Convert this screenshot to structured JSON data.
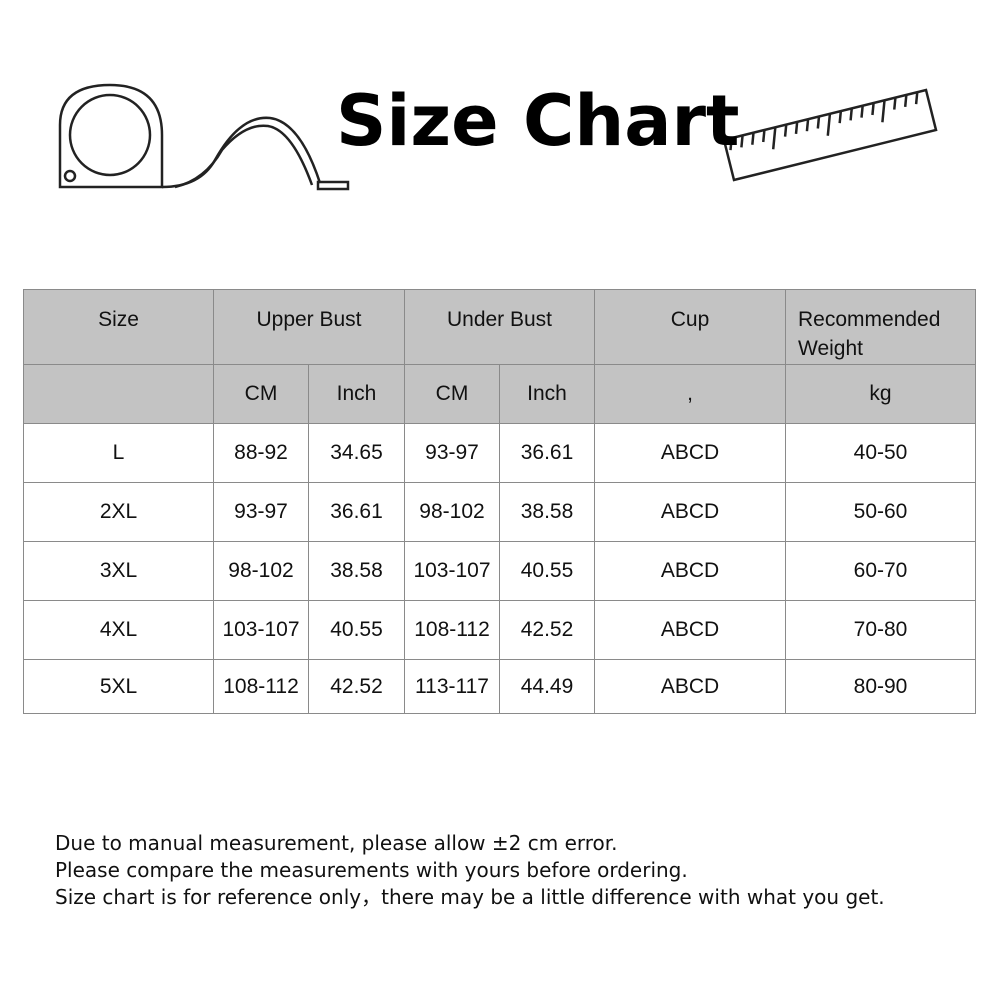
{
  "title": "Size Chart",
  "icons": [
    "tape-measure-icon",
    "ruler-icon"
  ],
  "table": {
    "header": {
      "size": "Size",
      "upper_bust": "Upper Bust",
      "under_bust": "Under Bust",
      "cup": "Cup",
      "weight": "Recommended Weight"
    },
    "units": {
      "size": "",
      "upper_cm": "CM",
      "upper_inch": "Inch",
      "under_cm": "CM",
      "under_inch": "Inch",
      "cup": ",",
      "weight": "kg"
    },
    "rows": [
      [
        "L",
        "88-92",
        "34.65",
        "93-97",
        "36.61",
        "ABCD",
        "40-50"
      ],
      [
        "2XL",
        "93-97",
        "36.61",
        "98-102",
        "38.58",
        "ABCD",
        "50-60"
      ],
      [
        "3XL",
        "98-102",
        "38.58",
        "103-107",
        "40.55",
        "ABCD",
        "60-70"
      ],
      [
        "4XL",
        "103-107",
        "40.55",
        "108-112",
        "42.52",
        "ABCD",
        "70-80"
      ],
      [
        "5XL",
        "108-112",
        "42.52",
        "113-117",
        "44.49",
        "ABCD",
        "80-90"
      ]
    ]
  },
  "header_bg": "#c3c3c3",
  "notes": [
    "Due to manual measurement, please allow ±2 cm error.",
    "Please compare the measurements with yours before ordering.",
    "Size chart is for reference only，there may be a little difference with what you get."
  ]
}
